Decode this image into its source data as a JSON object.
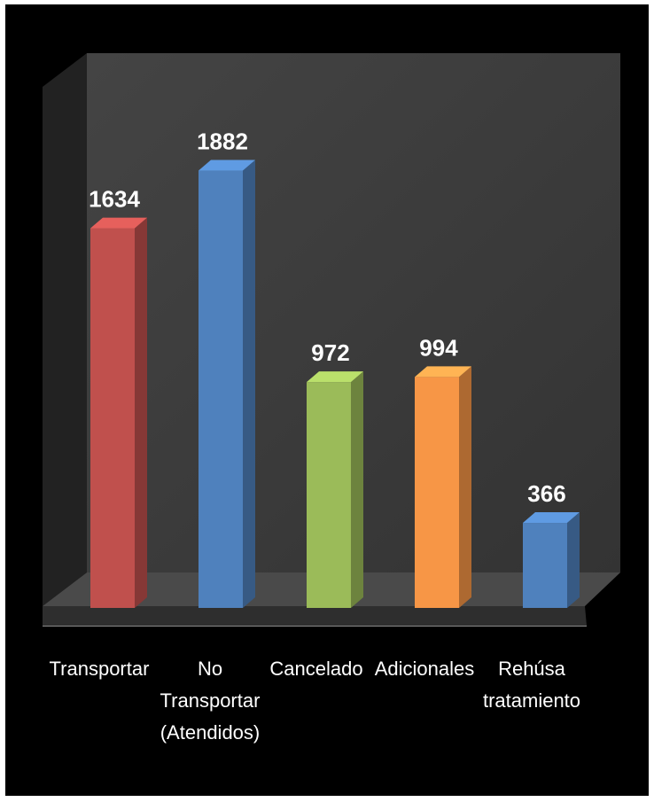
{
  "chart_data": {
    "type": "bar",
    "three_d": true,
    "categories": [
      [
        "Transportar"
      ],
      [
        "No",
        "Transportar",
        "(Atendidos)"
      ],
      [
        "Cancelado"
      ],
      [
        "Adicionales"
      ],
      [
        "Rehúsa",
        "tratamiento"
      ]
    ],
    "values": [
      1634,
      1882,
      972,
      994,
      366
    ],
    "colors": [
      "#c0504d",
      "#4f81bd",
      "#9bbb59",
      "#f79646",
      "#4f81bd"
    ],
    "ylim": [
      0,
      2100
    ],
    "grid": false,
    "legend": "none",
    "background": "#000000",
    "wall_color": "#3b3b3b"
  }
}
